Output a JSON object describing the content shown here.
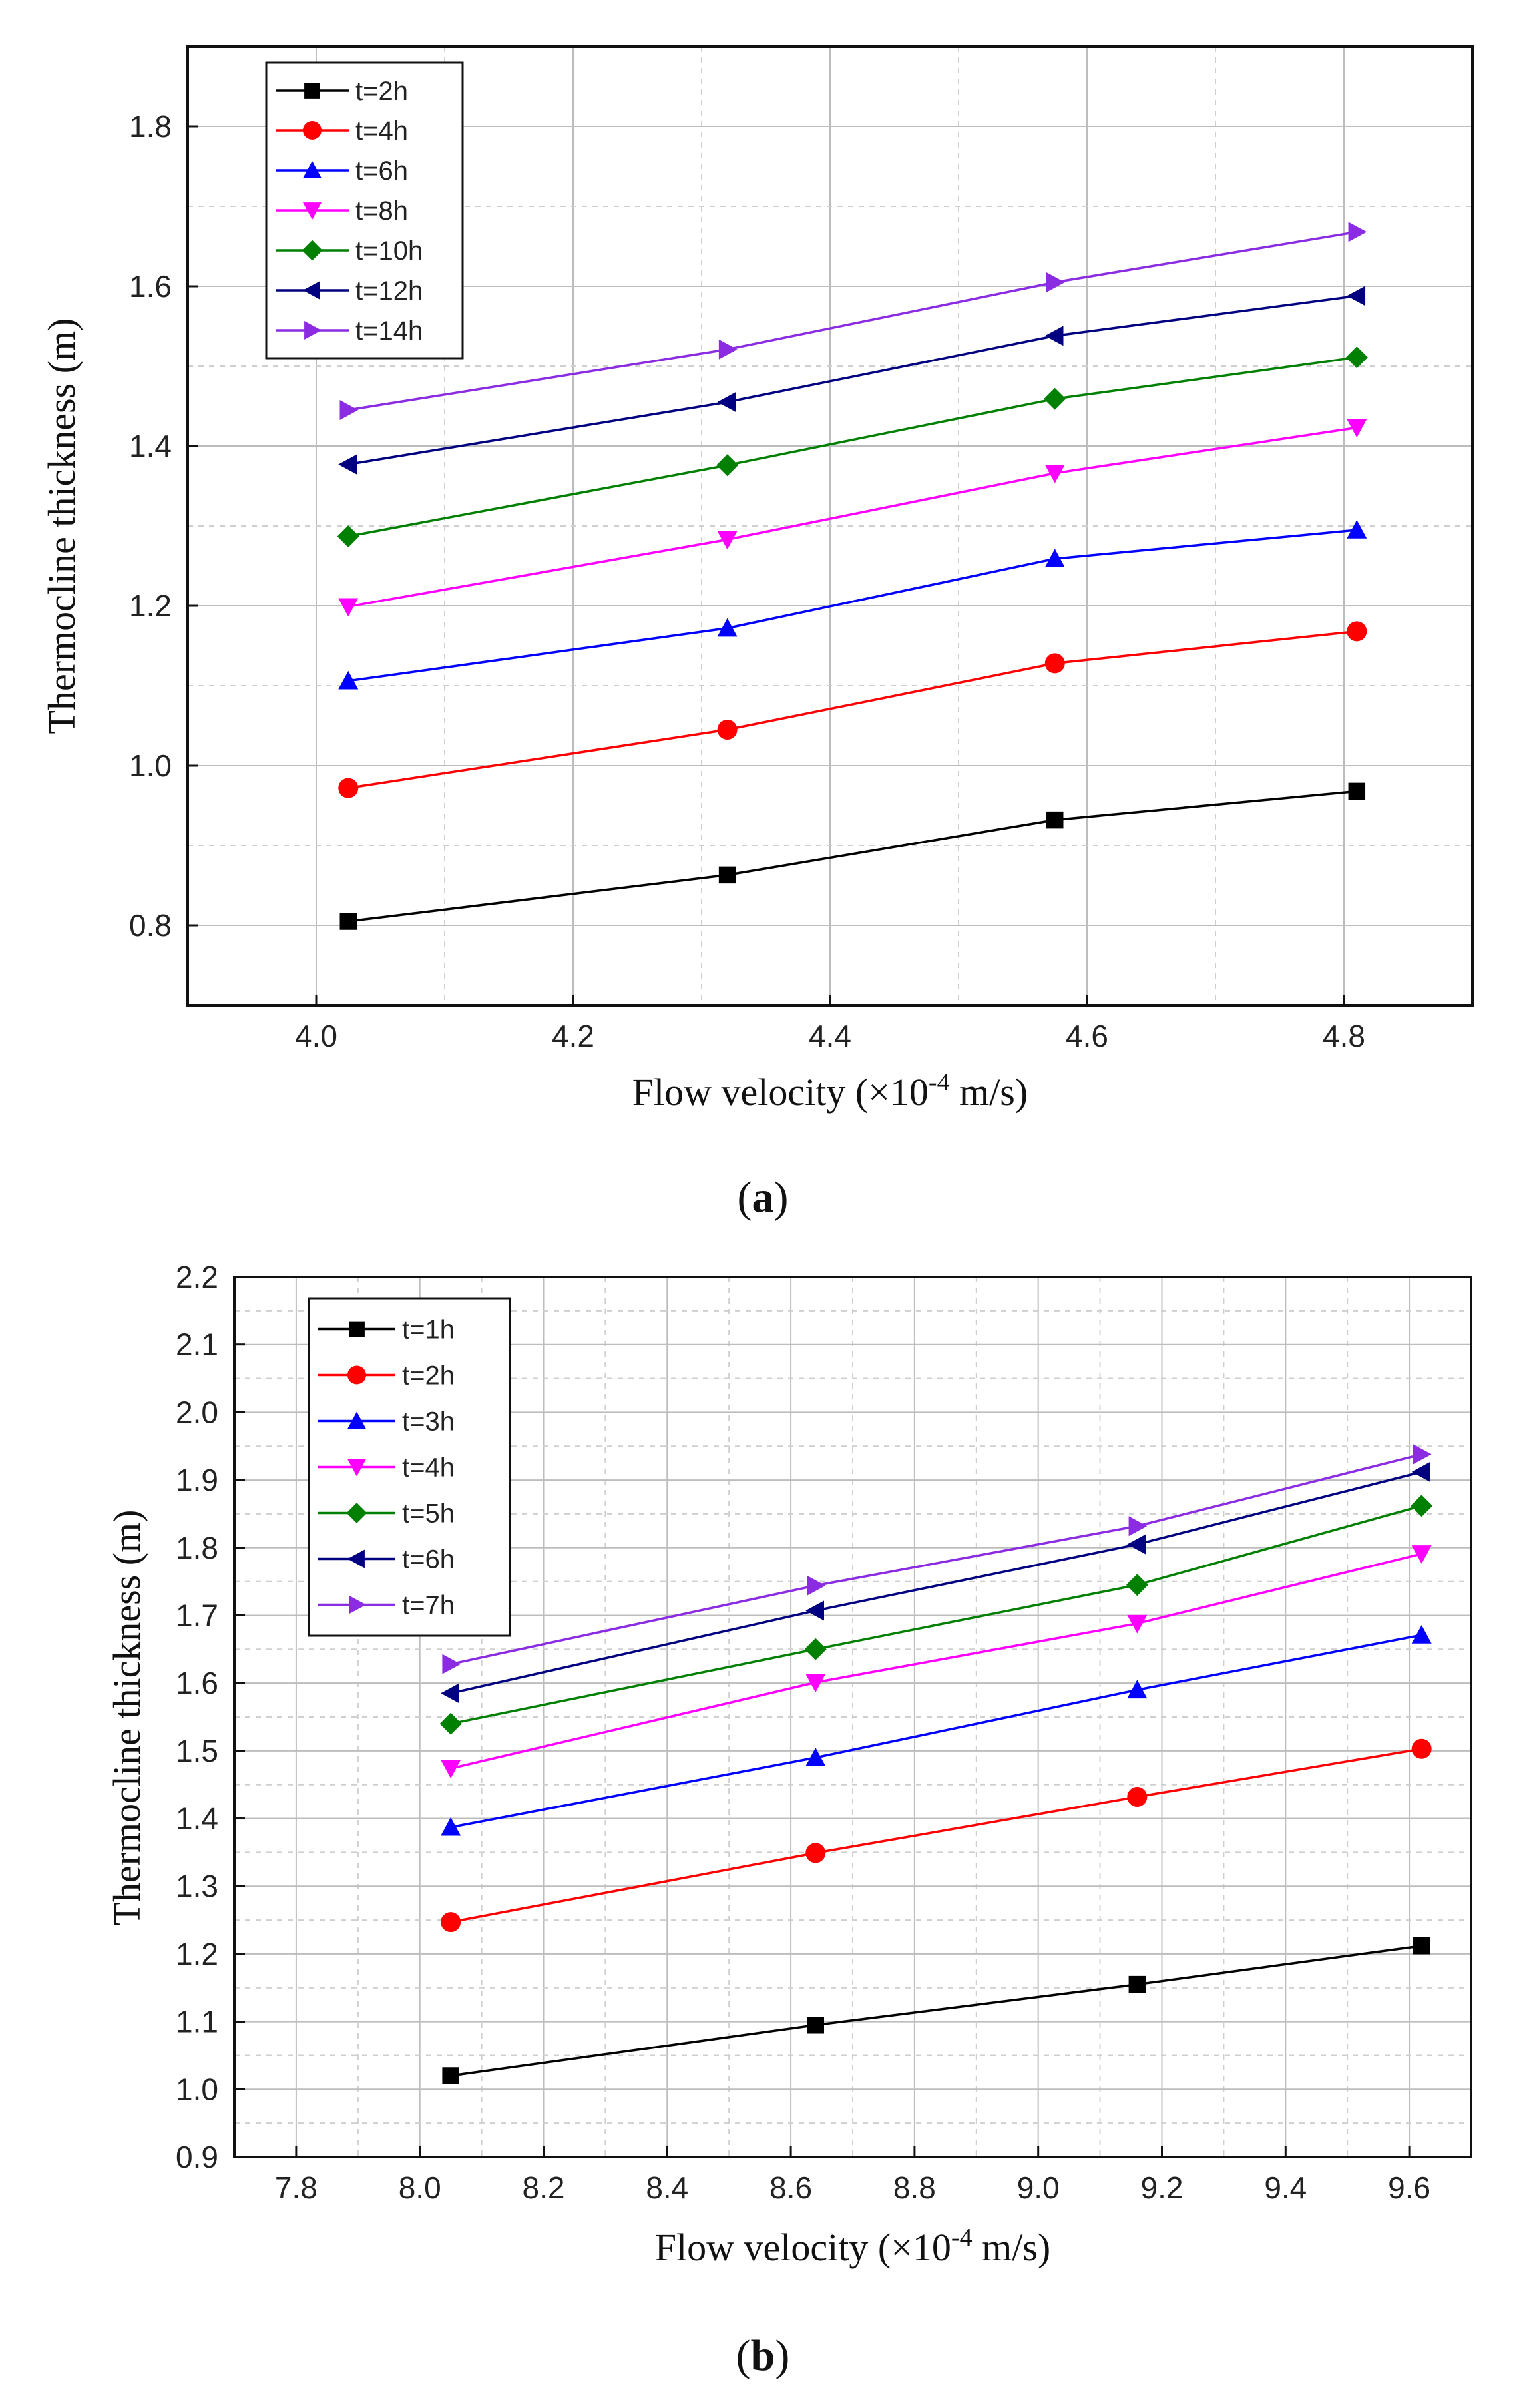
{
  "chart_data": [
    {
      "type": "line",
      "panel_label": "a",
      "title": "",
      "xlabel": "Flow velocity (×10",
      "xlabel_sup": "-4",
      "xlabel_tail": " m/s)",
      "ylabel": "Thermocline thickness (m)",
      "xlim": [
        3.9,
        4.9
      ],
      "ylim": [
        0.7,
        1.9
      ],
      "xticks": [
        "4.0",
        "4.2",
        "4.4",
        "4.6",
        "4.8"
      ],
      "yticks": [
        "0.8",
        "1.0",
        "1.2",
        "1.4",
        "1.6",
        "1.8"
      ],
      "grid": true,
      "legend_position": "top-left",
      "x": [
        4.025,
        4.32,
        4.575,
        4.81
      ],
      "series": [
        {
          "name": "t=2h",
          "marker": "square",
          "color": "#000000",
          "values": [
            0.805,
            0.863,
            0.932,
            0.968
          ]
        },
        {
          "name": "t=4h",
          "marker": "circle",
          "color": "#ff0000",
          "values": [
            0.972,
            1.045,
            1.128,
            1.168
          ]
        },
        {
          "name": "t=6h",
          "marker": "tri-up",
          "color": "#0000ff",
          "values": [
            1.106,
            1.172,
            1.259,
            1.295
          ]
        },
        {
          "name": "t=8h",
          "marker": "tri-down",
          "color": "#ff00ff",
          "values": [
            1.199,
            1.283,
            1.366,
            1.423
          ]
        },
        {
          "name": "t=10h",
          "marker": "diamond",
          "color": "#008000",
          "values": [
            1.287,
            1.376,
            1.459,
            1.511
          ]
        },
        {
          "name": "t=12h",
          "marker": "tri-left",
          "color": "#000080",
          "values": [
            1.377,
            1.455,
            1.538,
            1.588
          ]
        },
        {
          "name": "t=14h",
          "marker": "tri-right",
          "color": "#8b2be2",
          "values": [
            1.445,
            1.521,
            1.605,
            1.668
          ]
        }
      ]
    },
    {
      "type": "line",
      "panel_label": "b",
      "title": "",
      "xlabel": "Flow velocity (×10",
      "xlabel_sup": "-4",
      "xlabel_tail": " m/s)",
      "ylabel": "Thermocline thickness (m)",
      "xlim": [
        7.7,
        9.7
      ],
      "ylim": [
        0.9,
        2.2
      ],
      "xticks": [
        "7.8",
        "8.0",
        "8.2",
        "8.4",
        "8.6",
        "8.8",
        "9.0",
        "9.2",
        "9.4",
        "9.6"
      ],
      "yticks": [
        "0.9",
        "1.0",
        "1.1",
        "1.2",
        "1.3",
        "1.4",
        "1.5",
        "1.6",
        "1.7",
        "1.8",
        "1.9",
        "2.0",
        "2.1",
        "2.2"
      ],
      "grid": true,
      "legend_position": "top-left",
      "x": [
        8.05,
        8.64,
        9.16,
        9.62
      ],
      "series": [
        {
          "name": "t=1h",
          "marker": "square",
          "color": "#000000",
          "values": [
            1.02,
            1.095,
            1.155,
            1.212
          ]
        },
        {
          "name": "t=2h",
          "marker": "circle",
          "color": "#ff0000",
          "values": [
            1.247,
            1.349,
            1.432,
            1.503
          ]
        },
        {
          "name": "t=3h",
          "marker": "tri-up",
          "color": "#0000ff",
          "values": [
            1.387,
            1.49,
            1.59,
            1.671
          ]
        },
        {
          "name": "t=4h",
          "marker": "tri-down",
          "color": "#ff00ff",
          "values": [
            1.474,
            1.601,
            1.688,
            1.791
          ]
        },
        {
          "name": "t=5h",
          "marker": "diamond",
          "color": "#008000",
          "values": [
            1.54,
            1.65,
            1.745,
            1.862
          ]
        },
        {
          "name": "t=6h",
          "marker": "tri-left",
          "color": "#000080",
          "values": [
            1.585,
            1.707,
            1.805,
            1.912
          ]
        },
        {
          "name": "t=7h",
          "marker": "tri-right",
          "color": "#8b2be2",
          "values": [
            1.628,
            1.744,
            1.832,
            1.938
          ]
        }
      ]
    }
  ]
}
